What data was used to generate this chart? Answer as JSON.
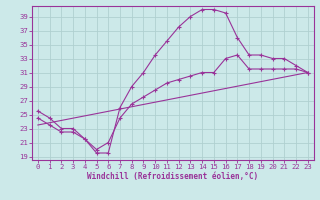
{
  "xlabel": "Windchill (Refroidissement éolien,°C)",
  "bg_color": "#cce9e9",
  "grid_color": "#aacccc",
  "line_color": "#993399",
  "xlim": [
    -0.5,
    23.5
  ],
  "ylim": [
    18.5,
    40.5
  ],
  "yticks": [
    19,
    21,
    23,
    25,
    27,
    29,
    31,
    33,
    35,
    37,
    39
  ],
  "xticks": [
    0,
    1,
    2,
    3,
    4,
    5,
    6,
    7,
    8,
    9,
    10,
    11,
    12,
    13,
    14,
    15,
    16,
    17,
    18,
    19,
    20,
    21,
    22,
    23
  ],
  "line1_x": [
    0,
    1,
    2,
    3,
    4,
    5,
    6,
    7,
    8,
    9,
    10,
    11,
    12,
    13,
    14,
    15,
    16,
    17,
    18,
    19,
    20,
    21,
    22,
    23
  ],
  "line1_y": [
    25.5,
    24.5,
    23.0,
    23.0,
    21.5,
    19.5,
    19.5,
    26.0,
    29.0,
    31.0,
    33.5,
    35.5,
    37.5,
    39.0,
    40.0,
    40.0,
    39.5,
    36.0,
    33.5,
    33.5,
    33.0,
    33.0,
    32.0,
    31.0
  ],
  "line2_x": [
    0,
    1,
    2,
    3,
    4,
    5,
    6,
    7,
    8,
    9,
    10,
    11,
    12,
    13,
    14,
    15,
    16,
    17,
    18,
    19,
    20,
    21,
    22,
    23
  ],
  "line2_y": [
    24.5,
    23.5,
    22.5,
    22.5,
    21.5,
    20.0,
    21.0,
    24.5,
    26.5,
    27.5,
    28.5,
    29.5,
    30.0,
    30.5,
    31.0,
    31.0,
    33.0,
    33.5,
    31.5,
    31.5,
    31.5,
    31.5,
    31.5,
    31.0
  ],
  "line3_x": [
    0,
    23
  ],
  "line3_y": [
    23.5,
    31.0
  ]
}
